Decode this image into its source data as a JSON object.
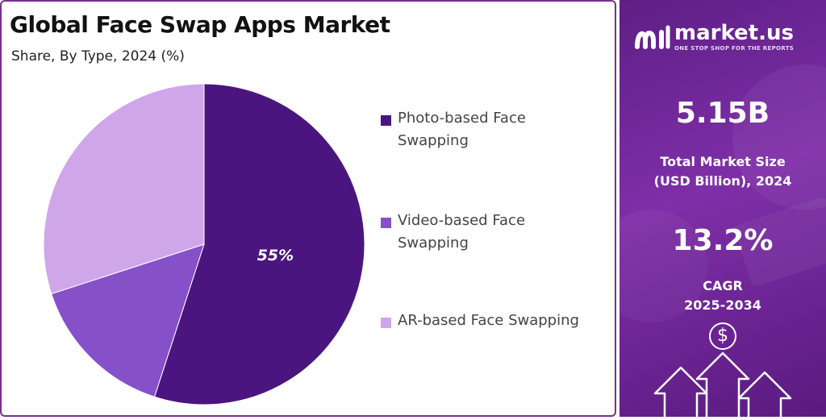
{
  "left": {
    "title": "Global Face Swap Apps Market",
    "subtitle": "Share, By Type, 2024 (%)"
  },
  "chart_data": {
    "type": "pie",
    "title": "Global Face Swap Apps Market",
    "subtitle": "Share, By Type, 2024 (%)",
    "categories": [
      "Photo-based Face Swapping",
      "Video-based Face Swapping",
      "AR-based Face Swapping"
    ],
    "values": [
      55,
      15,
      30
    ],
    "colors": [
      "#4b1580",
      "#8650c8",
      "#cfa6ea"
    ],
    "data_labels": [
      "55%",
      "",
      ""
    ],
    "legend_placement": "right"
  },
  "right": {
    "brand": "market.us",
    "tagline": "ONE STOP SHOP FOR THE REPORTS",
    "market_size_value": "5.15B",
    "market_size_label_line1": "Total Market Size",
    "market_size_label_line2": "(USD Billion), 2024",
    "cagr_value": "13.2%",
    "cagr_label_line1": "CAGR",
    "cagr_label_line2": "2025-2034",
    "icon_symbol": "$",
    "icons": [
      "dollar-icon",
      "arrow-up-icon"
    ]
  }
}
